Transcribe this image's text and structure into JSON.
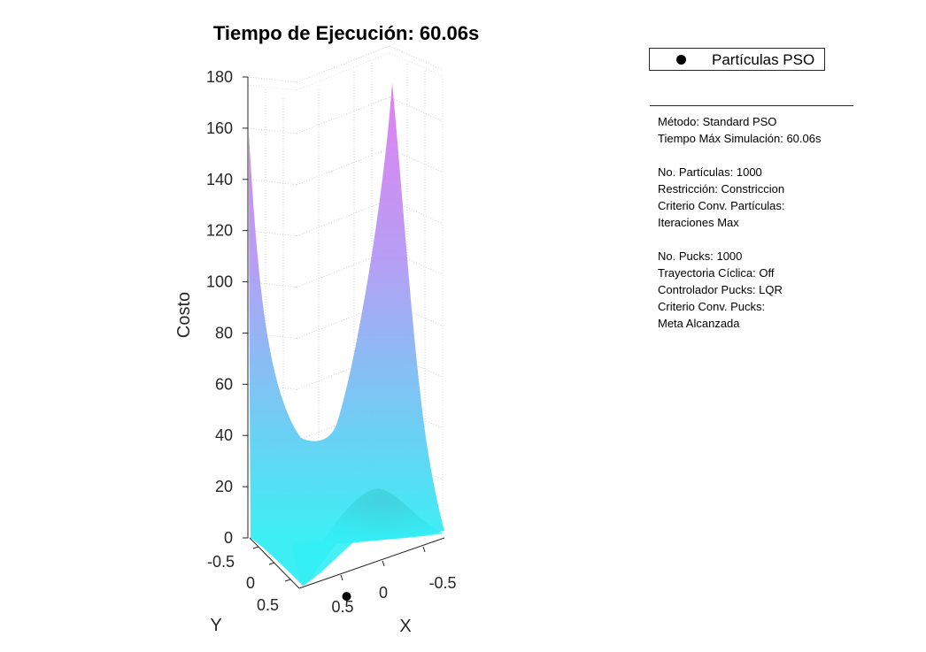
{
  "chart_data": {
    "type": "surface3d",
    "title": "Tiempo de Ejecución: 60.06s",
    "xlabel": "X",
    "ylabel": "Y",
    "zlabel": "Costo",
    "xlim": [
      -0.75,
      0.75
    ],
    "ylim": [
      -0.75,
      0.75
    ],
    "zlim": [
      0,
      180
    ],
    "x_ticks": [
      "-0.5",
      "0",
      "0.5"
    ],
    "y_ticks": [
      "-0.5",
      "0",
      "0.5"
    ],
    "z_ticks": [
      "0",
      "20",
      "40",
      "60",
      "80",
      "100",
      "120",
      "140",
      "160",
      "180"
    ],
    "grid": true,
    "colormap": [
      "#33eef4",
      "#b29af4",
      "#e07af0"
    ],
    "series": [
      {
        "name": "Partículas PSO",
        "marker": "filled-circle",
        "color": "#000000",
        "points": [
          {
            "x": 0.55,
            "y": 0.35,
            "z": 1
          }
        ]
      }
    ],
    "legend": "top-right"
  },
  "info_panel": {
    "lines": [
      "Método: Standard PSO",
      "Tiempo Máx Simulación: 60.06s",
      "",
      "No. Partículas: 1000",
      "Restricción: Constriccion",
      "Criterio Conv. Partículas:",
      "Iteraciones Max",
      "",
      "No. Pucks: 1000",
      "Trayectoria Cíclica: Off",
      "Controlador Pucks: LQR",
      "Criterio Conv. Pucks:",
      "Meta Alcanzada"
    ]
  }
}
